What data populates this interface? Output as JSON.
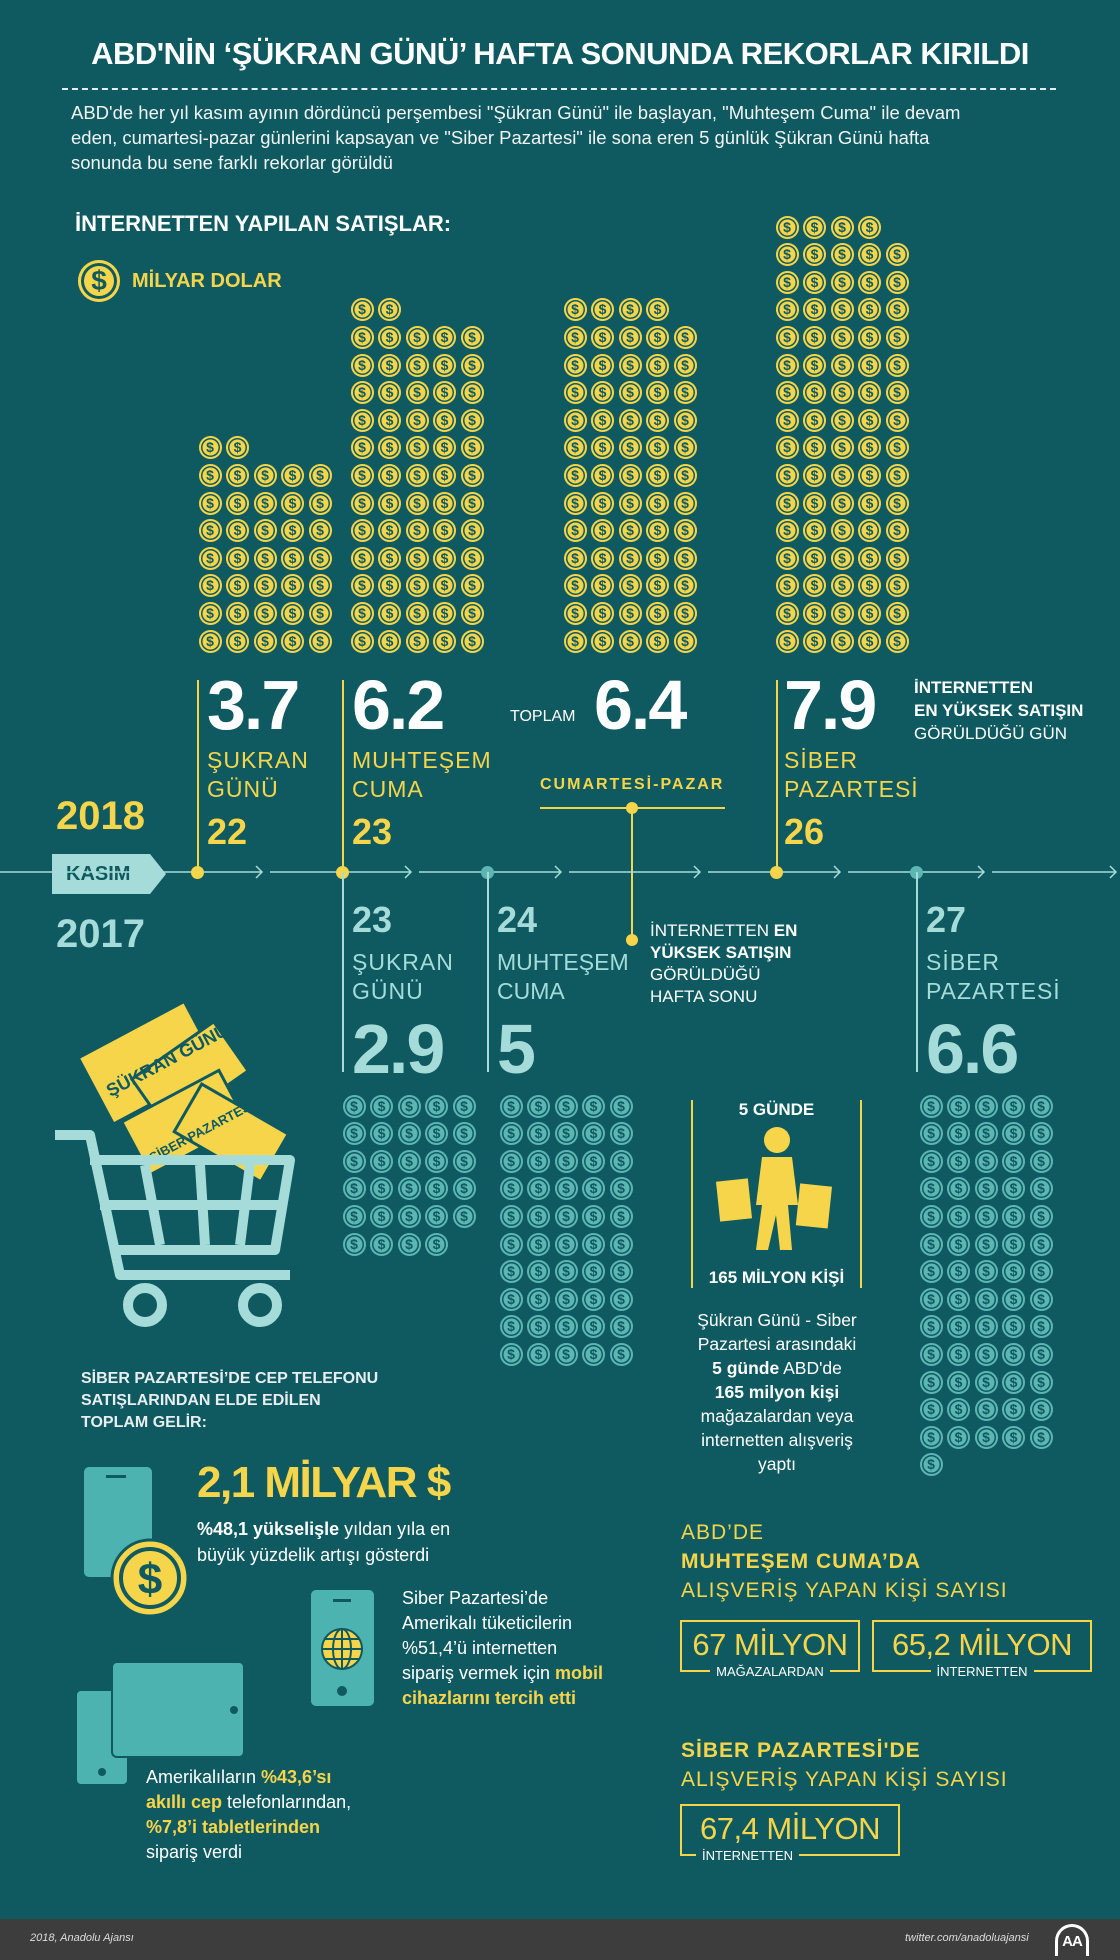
{
  "title": "ABD'NİN ‘ŞÜKRAN GÜNÜ’ HAFTA SONUNDA REKORLAR KIRILDI",
  "intro_lines": [
    "ABD'de her yıl kasım ayının dördüncü perşembesi \"Şükran Günü\" ile başlayan, \"Muhteşem Cuma\" ile devam",
    "eden, cumartesi-pazar günlerini kapsayan ve \"Siber Pazartesi\" ile sona eren 5 günlük Şükran Günü hafta",
    "sonunda bu sene farklı rekorlar görüldü"
  ],
  "sales_heading": "İNTERNETTEN YAPILAN SATIŞLAR:",
  "legend": {
    "icon": "dollar-coin-icon",
    "label": "MİLYAR DOLAR"
  },
  "colors": {
    "background": "#0f5a61",
    "accent_2018": "#f7d54a",
    "accent_2017": "#a5dcd9",
    "footer": "#3d3d3d"
  },
  "timeline": {
    "year_2018": "2018",
    "month": "KASIM",
    "year_2017": "2017"
  },
  "days_2018": [
    {
      "value": "3.7",
      "amount": 3.7,
      "label1": "ŞUKRAN",
      "label2": "GÜNÜ",
      "day": "22"
    },
    {
      "value": "6.2",
      "amount": 6.2,
      "label1": "MUHTEŞEM",
      "label2": "CUMA",
      "day": "23"
    },
    {
      "prefix": "TOPLAM",
      "value": "6.4",
      "amount": 6.4,
      "label1": "CUMARTESİ-PAZAR"
    },
    {
      "value": "7.9",
      "amount": 7.9,
      "label1": "SİBER",
      "label2": "PAZARTESİ",
      "day": "26"
    }
  ],
  "record_day_note": {
    "line1": "İNTERNETTEN",
    "line2": "EN YÜKSEK SATIŞIN",
    "line3": "GÖRÜLDÜĞÜ GÜN"
  },
  "record_weekend_note": {
    "a": "İNTERNETTEN ",
    "b": "EN",
    "c": "YÜKSEK SATIŞIN",
    "d": "GÖRÜLDÜĞÜ",
    "e": "HAFTA SONU"
  },
  "days_2017": [
    {
      "day": "23",
      "label1": "ŞUKRAN",
      "label2": "GÜNÜ",
      "value": "2.9",
      "amount": 2.9
    },
    {
      "day": "24",
      "label1": "MUHTEŞEM",
      "label2": "CUMA",
      "value": "5",
      "amount": 5
    },
    {
      "day": "27",
      "label1": "SİBER",
      "label2": "PAZARTESİ",
      "value": "6.6",
      "amount": 6.6
    }
  ],
  "cart": {
    "ticket1": "ŞÜKRAN GÜNÜ",
    "ticket2": "SİBER PAZARTESİ"
  },
  "shoppers": {
    "top": "5 GÜNDE",
    "bottom": "165 MİLYON KİŞİ",
    "desc": [
      "Şükran Günü - Siber",
      "Pazartesi arasındaki"
    ],
    "desc_b1": "5 günde",
    "desc_r1": " ABD'de",
    "desc_b2": "165 milyon kişi",
    "desc_rest": [
      "mağazalardan veya",
      "internetten alışveriş",
      "yaptı"
    ]
  },
  "mobile": {
    "heading": [
      "SİBER PAZARTESİ’DE CEP TELEFONU",
      "SATIŞLARINDAN ELDE EDİLEN",
      "TOPLAM GELİR:"
    ],
    "amount": "2,1 MİLYAR $",
    "growth_bold": "%48,1 yükselişle",
    "growth_rest": " yıldan yıla en",
    "growth_line2": "büyük yüzdelik artışı gösterdi",
    "pref_lines": [
      "Siber Pazartesi’de",
      "Amerikalı tüketicilerin",
      "%51,4’ü internetten"
    ],
    "pref_l4": "sipariş vermek için ",
    "pref_hl1": "mobil",
    "pref_hl2": "cihazlarını tercih etti",
    "split_a": "Amerikalıların ",
    "split_hl1": "%43,6’sı",
    "split_hl2": "akıllı cep",
    "split_b": " telefonlarından,",
    "split_hl3": "%7,8’i tabletlerinden",
    "split_c": "sipariş verdi"
  },
  "black_friday": {
    "heading1": "ABD’DE",
    "heading2": "MUHTEŞEM CUMA’DA",
    "heading3": "ALIŞVERİŞ YAPAN KİŞİ SAYISI",
    "stores_value": "67 MİLYON",
    "stores_label": "MAĞAZALARDAN",
    "online_value": "65,2 MİLYON",
    "online_label": "İNTERNETTEN"
  },
  "cyber_monday": {
    "heading1": "SİBER PAZARTESİ'DE",
    "heading2": "ALIŞVERİŞ YAPAN KİŞİ SAYISI",
    "online_value": "67,4 MİLYON",
    "online_label": "İNTERNETTEN"
  },
  "footer": {
    "credit": "2018, Anadolu Ajansı",
    "twitter": "twitter.com/anadoluajansi",
    "logo": "AA"
  }
}
